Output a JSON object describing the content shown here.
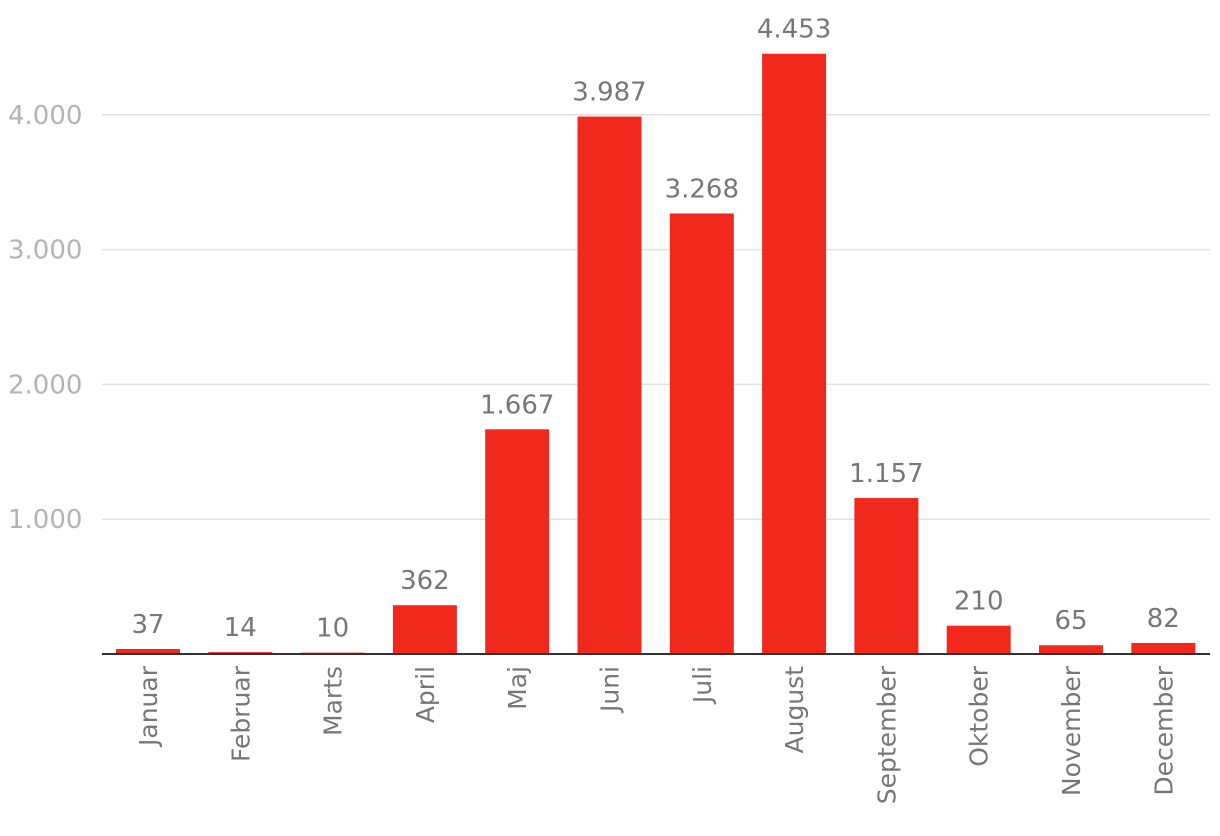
{
  "chart_data": {
    "type": "bar",
    "title": "",
    "xlabel": "",
    "ylabel": "",
    "categories": [
      "Januar",
      "Februar",
      "Marts",
      "April",
      "Maj",
      "Juni",
      "Juli",
      "August",
      "September",
      "Oktober",
      "November",
      "December"
    ],
    "values": [
      37,
      14,
      10,
      362,
      1667,
      3987,
      3268,
      4453,
      1157,
      210,
      65,
      82
    ],
    "value_labels": [
      "37",
      "14",
      "10",
      "362",
      "1.667",
      "3.987",
      "3.268",
      "4.453",
      "1.157",
      "210",
      "65",
      "82"
    ],
    "yticks": [
      1000,
      2000,
      3000,
      4000
    ],
    "ytick_labels": [
      "1.000",
      "2.000",
      "3.000",
      "4.000"
    ],
    "ylim": [
      0,
      4453
    ],
    "grid": true,
    "legend": "none",
    "bar_color": "#f0281e"
  }
}
